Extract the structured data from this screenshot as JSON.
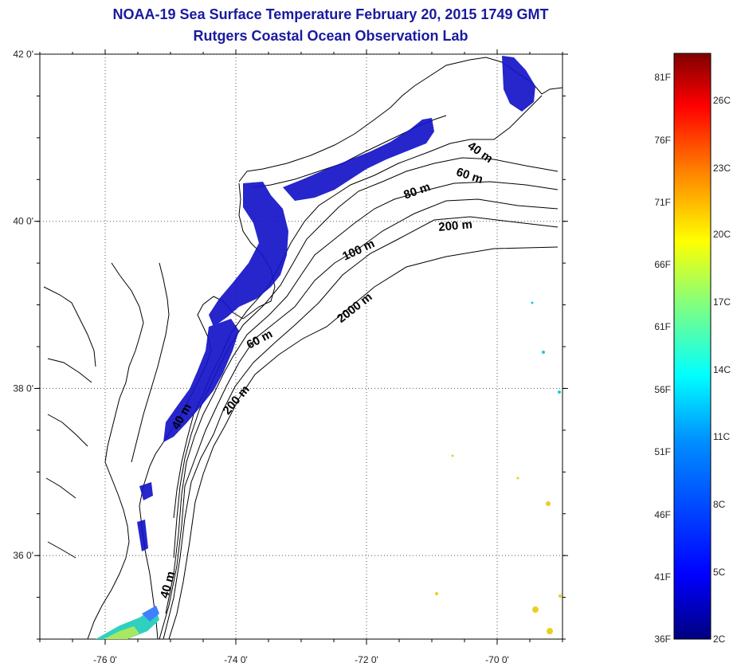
{
  "title": {
    "line1": "NOAA-19 Sea Surface Temperature February 20, 2015 1749 GMT",
    "line2": "Rutgers Coastal Ocean Observation Lab"
  },
  "map": {
    "lon_range": [
      -77.0,
      -69.0
    ],
    "lat_range": [
      35.0,
      42.0
    ],
    "lon_ticks": [
      {
        "value": -76,
        "label": "-76 0'"
      },
      {
        "value": -74,
        "label": "-74 0'"
      },
      {
        "value": -72,
        "label": "-72 0'"
      },
      {
        "value": -70,
        "label": "-70 0'"
      }
    ],
    "lat_ticks": [
      {
        "value": 42,
        "label": "42 0'"
      },
      {
        "value": 40,
        "label": "40 0'"
      },
      {
        "value": 38,
        "label": "38 0'"
      },
      {
        "value": 36,
        "label": "36 0'"
      }
    ],
    "grid": "dotted",
    "contour_labels": [
      {
        "text": "40 m"
      },
      {
        "text": "60 m"
      },
      {
        "text": "80 m"
      },
      {
        "text": "200 m"
      },
      {
        "text": "100 m"
      },
      {
        "text": "2000 m"
      },
      {
        "text": "60 m"
      },
      {
        "text": "40 m"
      },
      {
        "text": "200 m"
      },
      {
        "text": "40 m"
      }
    ]
  },
  "colorbar": {
    "fahrenheit": [
      "81F",
      "76F",
      "71F",
      "66F",
      "61F",
      "56F",
      "51F",
      "46F",
      "41F",
      "36F"
    ],
    "celsius": [
      "26C",
      "23C",
      "20C",
      "17C",
      "14C",
      "11C",
      "8C",
      "5C",
      "2C"
    ],
    "colors": [
      "#000080",
      "#0000ff",
      "#0080ff",
      "#00ffff",
      "#80ff80",
      "#ffff00",
      "#ff8000",
      "#ff0000",
      "#800000"
    ]
  },
  "colors": {
    "title": "#1a1aa0",
    "cold_water": "#1414c8"
  }
}
